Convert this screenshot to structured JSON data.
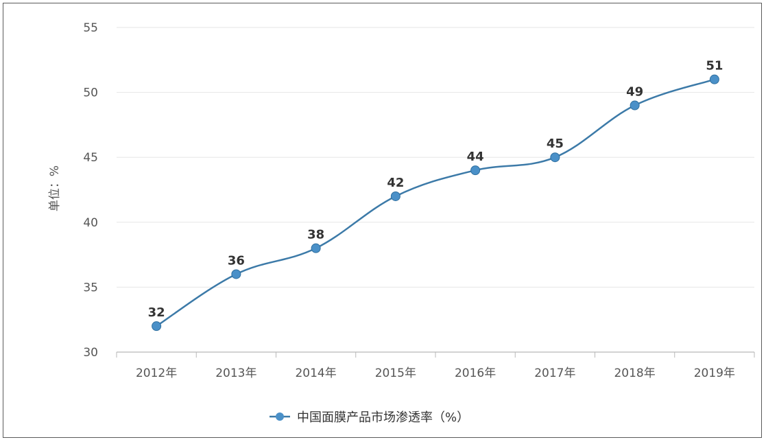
{
  "chart_data": {
    "type": "line",
    "categories": [
      "2012年",
      "2013年",
      "2014年",
      "2015年",
      "2016年",
      "2017年",
      "2018年",
      "2019年"
    ],
    "series": [
      {
        "name": "中国面膜产品市场渗透率（%）",
        "values": [
          32,
          36,
          38,
          42,
          44,
          45,
          49,
          51
        ],
        "color": "#4a90c8",
        "line_color": "#3c7aa8"
      }
    ],
    "ylabel": "单位：%",
    "xlabel": "",
    "ylim": [
      30,
      55
    ],
    "yticks": [
      "30",
      "35",
      "40",
      "45",
      "50",
      "55"
    ],
    "data_labels": [
      "32",
      "36",
      "38",
      "42",
      "44",
      "45",
      "49",
      "51"
    ],
    "grid": true,
    "legend": "bottom"
  }
}
